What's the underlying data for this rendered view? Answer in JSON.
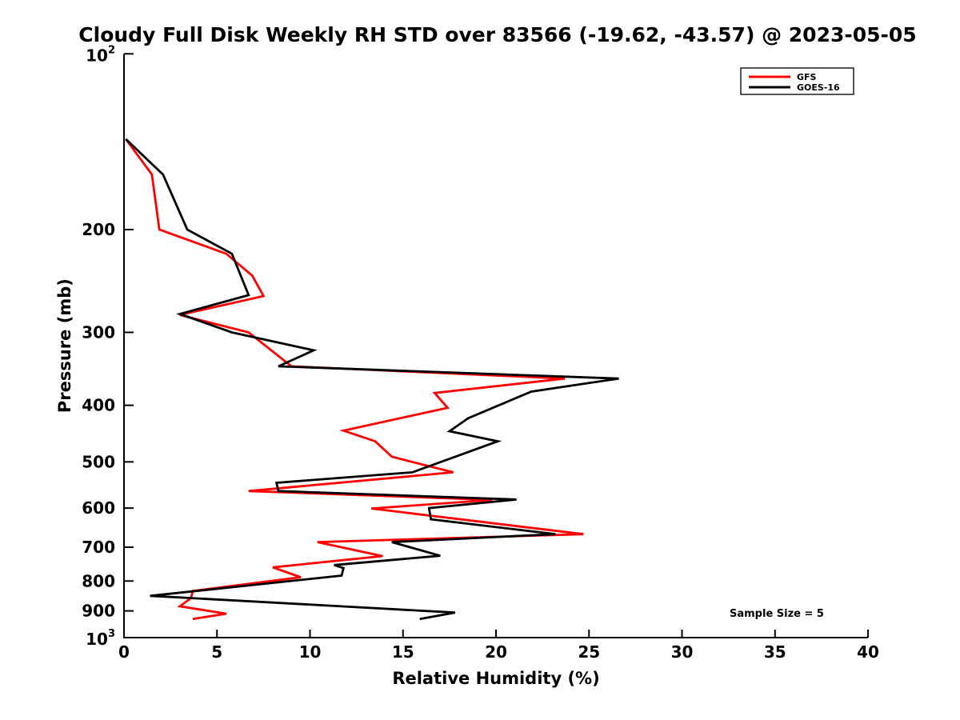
{
  "chart_data": {
    "type": "line",
    "title": "Cloudy Full Disk Weekly RH STD over 83566 (-19.62, -43.57) @ 2023-05-05",
    "xlabel": "Relative Humidity (%)",
    "ylabel": "Pressure (mb)",
    "xlim": [
      0,
      40
    ],
    "ylim": [
      100,
      1000
    ],
    "y_scale": "log",
    "y_axis_inverted": true,
    "grid": false,
    "x_ticks": [
      0,
      5,
      10,
      15,
      20,
      25,
      30,
      35,
      40
    ],
    "y_ticks": [
      {
        "v": 100,
        "base": "10",
        "sup": "2"
      },
      {
        "v": 200,
        "label": "200"
      },
      {
        "v": 300,
        "label": "300"
      },
      {
        "v": 400,
        "label": "400"
      },
      {
        "v": 500,
        "label": "500"
      },
      {
        "v": 600,
        "label": "600"
      },
      {
        "v": 700,
        "label": "700"
      },
      {
        "v": 800,
        "label": "800"
      },
      {
        "v": 900,
        "label": "900"
      },
      {
        "v": 1000,
        "base": "10",
        "sup": "3"
      }
    ],
    "legend": {
      "position": "upper right",
      "entries": [
        {
          "label": "GFS",
          "color": "#ff0000"
        },
        {
          "label": "GOES-16",
          "color": "#000000"
        }
      ]
    },
    "annotation": "Sample Size = 5",
    "series": [
      {
        "name": "GFS",
        "color": "#ff0000",
        "points_format": [
          "pressure_mb",
          "rh_percent"
        ],
        "points": [
          [
            140,
            0.1
          ],
          [
            161,
            1.5
          ],
          [
            200,
            1.9
          ],
          [
            220,
            5.5
          ],
          [
            240,
            6.9
          ],
          [
            260,
            7.5
          ],
          [
            280,
            3.0
          ],
          [
            300,
            6.7
          ],
          [
            343,
            9.0
          ],
          [
            360,
            23.7
          ],
          [
            381,
            16.7
          ],
          [
            404,
            17.4
          ],
          [
            442,
            11.8
          ],
          [
            461,
            13.5
          ],
          [
            490,
            14.4
          ],
          [
            521,
            17.7
          ],
          [
            561,
            6.7
          ],
          [
            581,
            19.8
          ],
          [
            601,
            13.3
          ],
          [
            665,
            24.7
          ],
          [
            686,
            10.4
          ],
          [
            725,
            13.9
          ],
          [
            758,
            8.0
          ],
          [
            788,
            9.5
          ],
          [
            832,
            3.7
          ],
          [
            856,
            3.6
          ],
          [
            884,
            3.0
          ],
          [
            910,
            5.5
          ],
          [
            929,
            3.7
          ]
        ]
      },
      {
        "name": "GOES-16",
        "color": "#000000",
        "points_format": [
          "pressure_mb",
          "rh_percent"
        ],
        "points": [
          [
            140,
            0.1
          ],
          [
            161,
            2.1
          ],
          [
            178,
            2.7
          ],
          [
            200,
            3.4
          ],
          [
            220,
            5.8
          ],
          [
            259,
            6.7
          ],
          [
            279,
            3.0
          ],
          [
            300,
            5.8
          ],
          [
            322,
            10.2
          ],
          [
            343,
            8.3
          ],
          [
            360,
            26.6
          ],
          [
            379,
            21.9
          ],
          [
            421,
            18.5
          ],
          [
            443,
            17.5
          ],
          [
            461,
            20.1
          ],
          [
            521,
            15.5
          ],
          [
            543,
            8.2
          ],
          [
            561,
            8.3
          ],
          [
            580,
            21.1
          ],
          [
            600,
            16.4
          ],
          [
            627,
            16.5
          ],
          [
            665,
            23.2
          ],
          [
            686,
            14.4
          ],
          [
            724,
            17.0
          ],
          [
            751,
            11.3
          ],
          [
            760,
            11.8
          ],
          [
            783,
            11.7
          ],
          [
            848,
            1.4
          ],
          [
            906,
            17.8
          ],
          [
            929,
            15.9
          ]
        ]
      }
    ]
  }
}
